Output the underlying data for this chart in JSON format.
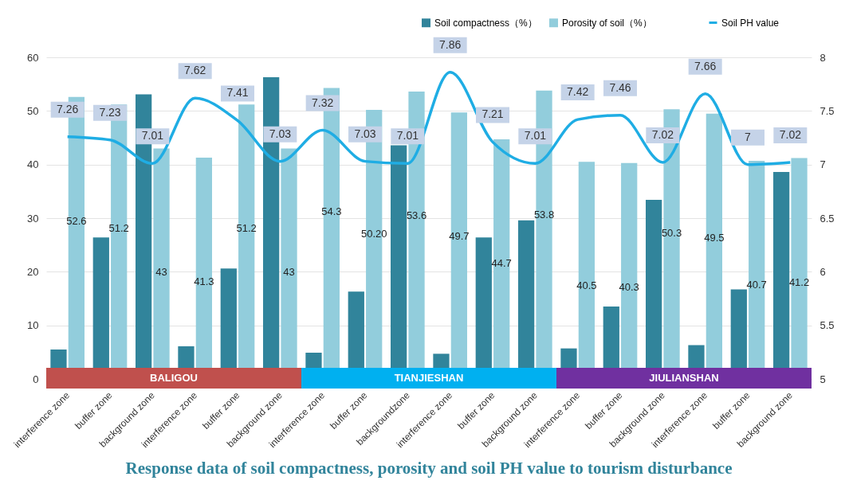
{
  "chart_data": {
    "type": "bar",
    "title": "Response data of soil compactness, porosity and soil PH value to tourism disturbance",
    "categories": [
      "interference zone",
      "buffer zone",
      "background zone",
      "interference zone",
      "buffer zone",
      "background zone",
      "interference zone",
      "buffer zone",
      "backgroundzone",
      "interference zone",
      "buffer zone",
      "background zone",
      "interference zone",
      "buffer zone",
      "background zone",
      "interference zone",
      "buffer zone",
      "background zone"
    ],
    "series": [
      {
        "name": "Soil compactness（%）",
        "color": "#31849b",
        "values": [
          5.5,
          26.4,
          53.1,
          6.1,
          20.6,
          56.3,
          4.9,
          16.3,
          43.6,
          4.7,
          26.4,
          29.6,
          5.7,
          13.5,
          33.4,
          6.3,
          16.7,
          38.6
        ]
      },
      {
        "name": "Porosity of soil（%）",
        "color": "#92cddc",
        "values": [
          52.6,
          51.2,
          43,
          41.3,
          51.2,
          43,
          54.3,
          50.2,
          53.6,
          49.7,
          44.7,
          53.8,
          40.5,
          40.3,
          50.3,
          49.5,
          40.7,
          41.2
        ],
        "value_labels": [
          "52.6",
          "51.2",
          "43",
          "41.3",
          "51.2",
          "43",
          "54.3",
          "50.20",
          "53.6",
          "49.7",
          "44.7",
          "53.8",
          "40.5",
          "40.3",
          "50.3",
          "49.5",
          "40.7",
          "41.2"
        ]
      },
      {
        "name": "Soil PH value",
        "type": "line",
        "axis": "y2",
        "color": "#1fade4",
        "values": [
          7.26,
          7.23,
          7.01,
          7.62,
          7.41,
          7.03,
          7.32,
          7.03,
          7.01,
          7.86,
          7.21,
          7.01,
          7.42,
          7.46,
          7.02,
          7.66,
          7,
          7.02
        ],
        "value_labels": [
          "7.26",
          "7.23",
          "7.01",
          "7.62",
          "7.41",
          "7.03",
          "7.32",
          "7.03",
          "7.01",
          "7.86",
          "7.21",
          "7.01",
          "7.42",
          "7.46",
          "7.02",
          "7.66",
          "7",
          "7.02"
        ]
      }
    ],
    "ylim": [
      0,
      60
    ],
    "yticks": [
      0,
      10,
      20,
      30,
      40,
      50,
      60
    ],
    "y2lim": [
      5,
      8
    ],
    "y2ticks": [
      5,
      5.5,
      6,
      6.5,
      7,
      7.5,
      8
    ],
    "annotations": [
      "BALIGOU",
      "TIANJIESHAN",
      "JIULIANSHAN"
    ],
    "grid": "y",
    "legend": "top right"
  }
}
